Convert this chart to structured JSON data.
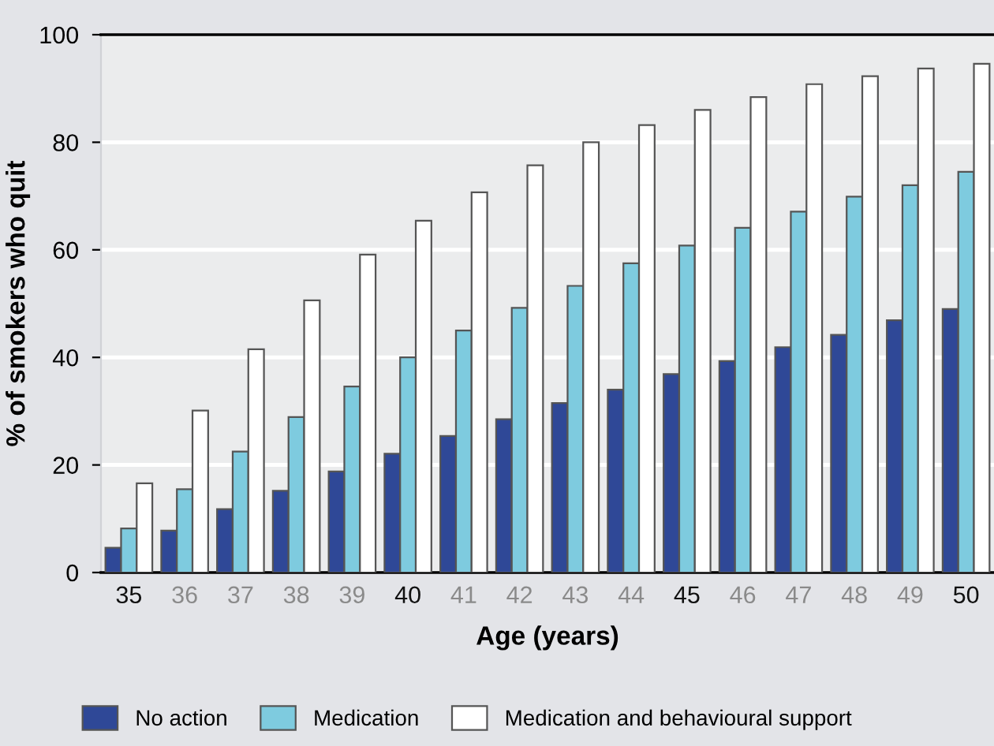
{
  "chart_data": {
    "type": "bar",
    "xlabel": "Age (years)",
    "ylabel": "% of smokers who quit",
    "categories": [
      "35",
      "36",
      "37",
      "38",
      "39",
      "40",
      "41",
      "42",
      "43",
      "44",
      "45",
      "46",
      "47",
      "48",
      "49",
      "50"
    ],
    "series": [
      {
        "name": "No action",
        "color": "#2f4897",
        "values": [
          4.6,
          7.8,
          11.8,
          15.2,
          18.8,
          22.1,
          25.4,
          28.5,
          31.5,
          34.0,
          36.9,
          39.3,
          41.9,
          44.2,
          46.9,
          49.0
        ]
      },
      {
        "name": "Medication",
        "color": "#7ecbdf",
        "values": [
          8.2,
          15.5,
          22.5,
          28.9,
          34.6,
          40.0,
          45.0,
          49.2,
          53.3,
          57.5,
          60.8,
          64.1,
          67.1,
          69.9,
          72.0,
          74.5
        ]
      },
      {
        "name": "Medication and behavioural support",
        "color": "#ffffff",
        "values": [
          16.6,
          30.1,
          41.5,
          50.6,
          59.1,
          65.4,
          70.7,
          75.7,
          80.0,
          83.2,
          86.0,
          88.4,
          90.8,
          92.3,
          93.7,
          94.6
        ]
      }
    ],
    "ylim": [
      0,
      100
    ],
    "yticks": [
      0,
      20,
      40,
      60,
      80,
      100
    ],
    "grid": "y",
    "legend": "bottom"
  }
}
